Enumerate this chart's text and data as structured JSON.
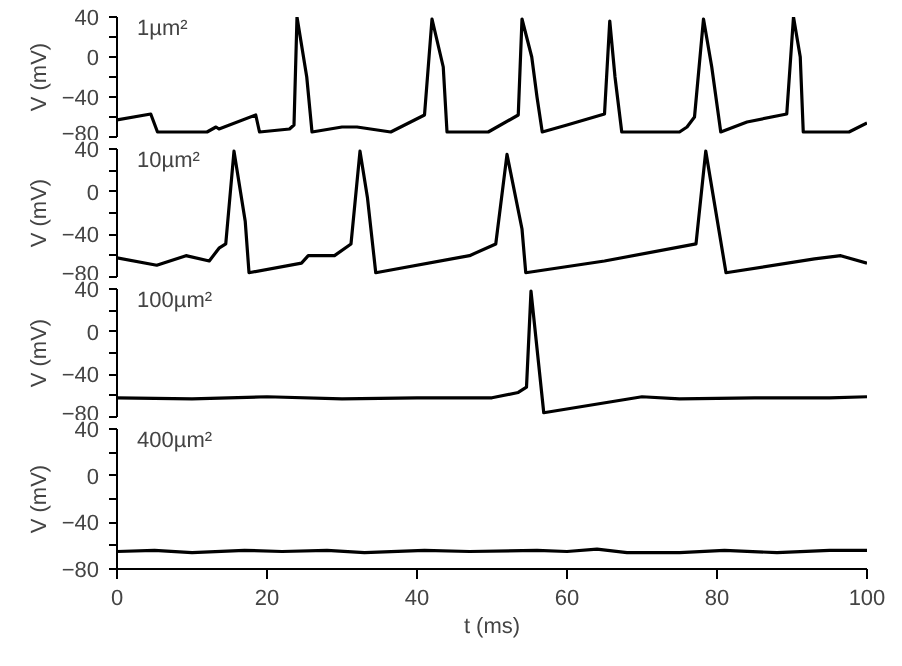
{
  "chart_data": [
    {
      "type": "line",
      "annotations": [
        "1µm²"
      ],
      "ylabel": "V (mV)",
      "xlim": [
        0,
        100
      ],
      "ylim": [
        -80,
        40
      ],
      "yticks": [
        -80,
        {
          "value": -60,
          "label": null
        },
        -40,
        {
          "value": -20,
          "label": null
        },
        0,
        {
          "value": 20,
          "label": null
        },
        40
      ],
      "tick_labels": "y",
      "grid": false,
      "series": [
        {
          "color": "#000000",
          "x": [
            0,
            4.5,
            5.4,
            12,
            13.2,
            13.6,
            18.5,
            19,
            23,
            23.6,
            24,
            25.3,
            26,
            30,
            32,
            36.5,
            41,
            42,
            43.5,
            44,
            49.5,
            53.5,
            54,
            55.3,
            56,
            56.7,
            60,
            65,
            65.7,
            66.4,
            67.3,
            75,
            76,
            77,
            78.2,
            79.3,
            80.5,
            84,
            89.3,
            90.2,
            91.1,
            91.5,
            97.6,
            100
          ],
          "values": [
            -63,
            -57,
            -75,
            -75,
            -70,
            -72,
            -58,
            -75,
            -72,
            -68,
            40,
            -20,
            -75,
            -70,
            -70,
            -75,
            -58,
            38,
            -10,
            -75,
            -75,
            -58,
            38,
            0,
            -40,
            -75,
            -68,
            -57,
            36,
            -20,
            -75,
            -75,
            -70,
            -60,
            38,
            -10,
            -75,
            -65,
            -57,
            40,
            0,
            -75,
            -75,
            -66
          ]
        }
      ]
    },
    {
      "type": "line",
      "annotations": [
        "10µm²"
      ],
      "ylabel": "V (mV)",
      "xlim": [
        0,
        100
      ],
      "ylim": [
        -80,
        40
      ],
      "yticks": [
        -80,
        {
          "value": -60,
          "label": null
        },
        -40,
        {
          "value": -20,
          "label": null
        },
        0,
        {
          "value": 20,
          "label": null
        },
        40
      ],
      "tick_labels": "y",
      "grid": false,
      "series": [
        {
          "color": "#000000",
          "x": [
            0,
            5.3,
            9.2,
            12.3,
            13.6,
            14.5,
            15.6,
            17.1,
            17.6,
            24.6,
            25.5,
            29,
            31.2,
            32.4,
            33.4,
            34.5,
            47,
            50.5,
            52,
            54,
            54.5,
            65,
            77.2,
            78.5,
            81.2,
            93,
            96.5,
            100
          ],
          "values": [
            -62,
            -69,
            -60,
            -65,
            -53,
            -49,
            38,
            -28,
            -76,
            -67,
            -60,
            -60,
            -49,
            38,
            -6,
            -76,
            -60,
            -49,
            35,
            -35,
            -76,
            -65,
            -49,
            38,
            -76,
            -63,
            -60,
            -67
          ]
        }
      ]
    },
    {
      "type": "line",
      "annotations": [
        "100µm²"
      ],
      "ylabel": "V (mV)",
      "xlim": [
        0,
        100
      ],
      "ylim": [
        -80,
        40
      ],
      "yticks": [
        -80,
        {
          "value": -60,
          "label": null
        },
        -40,
        {
          "value": -20,
          "label": null
        },
        0,
        {
          "value": 20,
          "label": null
        },
        40
      ],
      "tick_labels": "y",
      "grid": false,
      "series": [
        {
          "color": "#000000",
          "x": [
            0,
            10,
            20,
            30,
            40,
            50,
            53.5,
            54.6,
            55.2,
            56.9,
            70,
            75,
            85,
            95,
            100
          ],
          "values": [
            -62,
            -63,
            -61,
            -63,
            -62,
            -62,
            -57,
            -52,
            38,
            -76,
            -61,
            -63,
            -62,
            -62,
            -61
          ]
        }
      ]
    },
    {
      "type": "line",
      "annotations": [
        "400µm²"
      ],
      "ylabel": "V (mV)",
      "xlabel": "t (ms)",
      "xlim": [
        0,
        100
      ],
      "ylim": [
        -80,
        40
      ],
      "xticks": [
        0,
        20,
        40,
        60,
        80,
        100
      ],
      "yticks": [
        -80,
        {
          "value": -60,
          "label": null
        },
        -40,
        {
          "value": -20,
          "label": null
        },
        0,
        {
          "value": 20,
          "label": null
        },
        40
      ],
      "grid": false,
      "series": [
        {
          "color": "#000000",
          "x": [
            0,
            5,
            10,
            17,
            22,
            28,
            33,
            41,
            47,
            56,
            60,
            64,
            68,
            75,
            81,
            88,
            95,
            100
          ],
          "values": [
            -65,
            -64,
            -66,
            -64,
            -65,
            -64,
            -66,
            -64,
            -65,
            -64,
            -65,
            -63,
            -66,
            -66,
            -64,
            -66,
            -64,
            -64
          ]
        }
      ]
    }
  ]
}
